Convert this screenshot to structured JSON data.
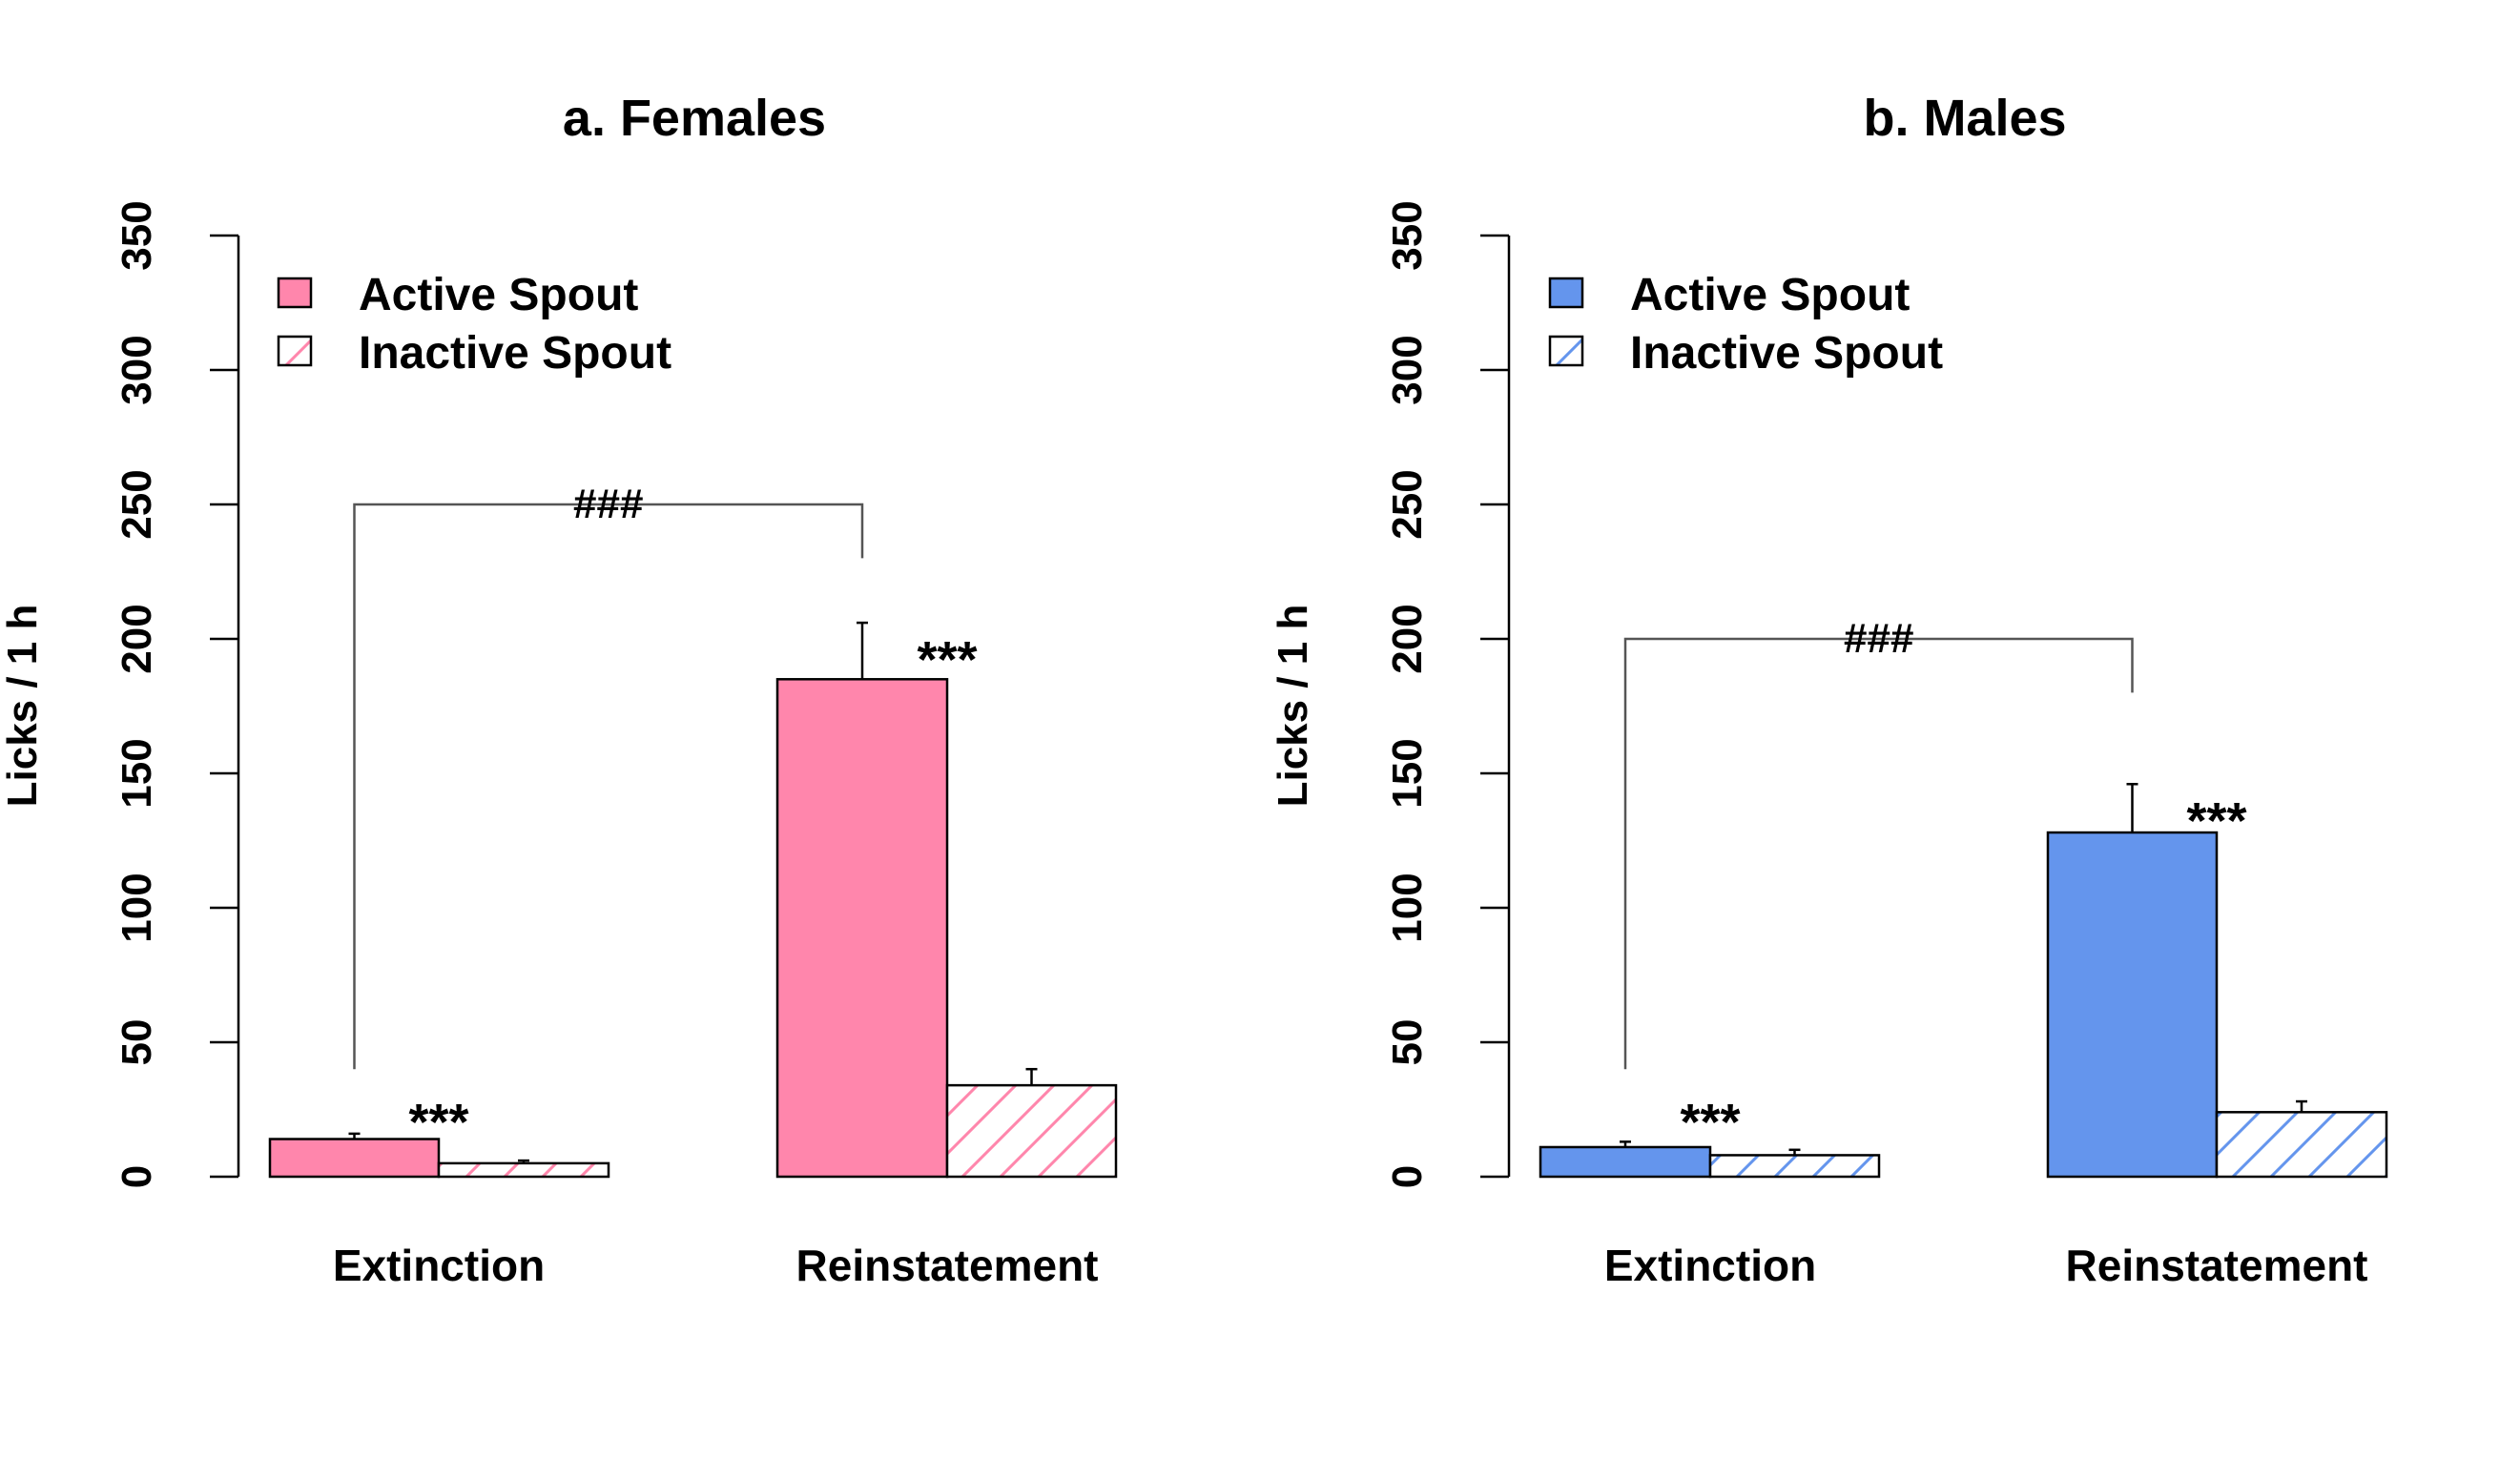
{
  "chart_data": [
    {
      "type": "bar",
      "title": "a. Females",
      "ylabel": "Licks / 1 h",
      "xlabel": "",
      "ylim": [
        0,
        350
      ],
      "yticks": [
        "0",
        "50",
        "100",
        "150",
        "200",
        "250",
        "300",
        "350"
      ],
      "categories": [
        "Extinction",
        "Reinstatement"
      ],
      "series": [
        {
          "name": "Active Spout",
          "values": [
            14,
            185
          ],
          "errors": [
            2,
            21
          ],
          "fill": "solid"
        },
        {
          "name": "Inactive Spout",
          "values": [
            5,
            34
          ],
          "errors": [
            1,
            6
          ],
          "fill": "hatched"
        }
      ],
      "color": "#FF86AC",
      "legend": "top-left",
      "grid": false,
      "annotations": {
        "stars": [
          {
            "text": "***",
            "category": "Extinction",
            "y": 28
          },
          {
            "text": "***",
            "category": "Reinstatement",
            "y": 200
          }
        ],
        "bracket": {
          "label": "###",
          "from": "Extinction",
          "to": "Reinstatement",
          "y": 250,
          "left_bottom": 40,
          "right_bottom": 230
        }
      }
    },
    {
      "type": "bar",
      "title": "b. Males",
      "ylabel": "Licks / 1 h",
      "xlabel": "",
      "ylim": [
        0,
        350
      ],
      "yticks": [
        "0",
        "50",
        "100",
        "150",
        "200",
        "250",
        "300",
        "350"
      ],
      "categories": [
        "Extinction",
        "Reinstatement"
      ],
      "series": [
        {
          "name": "Active Spout",
          "values": [
            11,
            128
          ],
          "errors": [
            2,
            18
          ],
          "fill": "solid"
        },
        {
          "name": "Inactive Spout",
          "values": [
            8,
            24
          ],
          "errors": [
            2,
            4
          ],
          "fill": "hatched"
        }
      ],
      "color": "#6495ED",
      "legend": "top-left",
      "grid": false,
      "annotations": {
        "stars": [
          {
            "text": "***",
            "category": "Extinction",
            "y": 28
          },
          {
            "text": "***",
            "category": "Reinstatement",
            "y": 140
          }
        ],
        "bracket": {
          "label": "###",
          "from": "Extinction",
          "to": "Reinstatement",
          "y": 200,
          "left_bottom": 40,
          "right_bottom": 180
        }
      }
    }
  ]
}
